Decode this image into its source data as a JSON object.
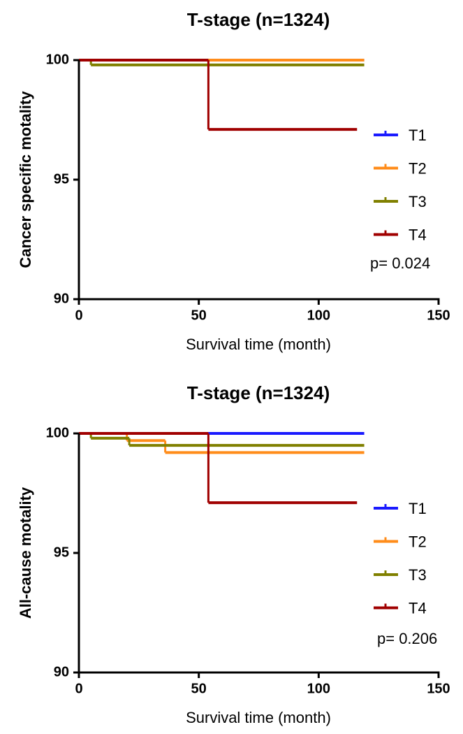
{
  "chart_data": [
    {
      "type": "line",
      "step": "post",
      "title": "T-stage (n=1324)",
      "xlabel": "Survival time (month)",
      "ylabel": "Cancer specific motality",
      "xlim": [
        0,
        150
      ],
      "xticks": [
        0,
        50,
        100,
        150
      ],
      "ylim": [
        90,
        100
      ],
      "yticks": [
        90,
        95,
        100
      ],
      "annotation": "p= 0.024",
      "series": [
        {
          "name": "T1",
          "color": "#1a1aff",
          "x": [
            0,
            119
          ],
          "values": [
            100,
            100
          ]
        },
        {
          "name": "T2",
          "color": "#ff8c1a",
          "x": [
            0,
            119
          ],
          "values": [
            100,
            100
          ]
        },
        {
          "name": "T3",
          "color": "#808000",
          "x": [
            0,
            5,
            119
          ],
          "values": [
            100,
            99.8,
            99.8
          ]
        },
        {
          "name": "T4",
          "color": "#a00000",
          "x": [
            0,
            54,
            116
          ],
          "values": [
            100,
            97.1,
            97.1
          ]
        }
      ]
    },
    {
      "type": "line",
      "step": "post",
      "title": "T-stage (n=1324)",
      "xlabel": "Survival time (month)",
      "ylabel": "All-cause motality",
      "xlim": [
        0,
        150
      ],
      "xticks": [
        0,
        50,
        100,
        150
      ],
      "ylim": [
        90,
        100
      ],
      "yticks": [
        90,
        95,
        100
      ],
      "annotation": "p= 0.206",
      "series": [
        {
          "name": "T1",
          "color": "#1a1aff",
          "x": [
            0,
            119
          ],
          "values": [
            100,
            100
          ]
        },
        {
          "name": "T2",
          "color": "#ff8c1a",
          "x": [
            0,
            20,
            36,
            119
          ],
          "values": [
            100,
            99.7,
            99.2,
            99.2
          ]
        },
        {
          "name": "T3",
          "color": "#808000",
          "x": [
            0,
            5,
            21,
            119
          ],
          "values": [
            100,
            99.8,
            99.5,
            99.5
          ]
        },
        {
          "name": "T4",
          "color": "#a00000",
          "x": [
            0,
            54,
            116
          ],
          "values": [
            100,
            97.1,
            97.1
          ]
        }
      ]
    }
  ]
}
